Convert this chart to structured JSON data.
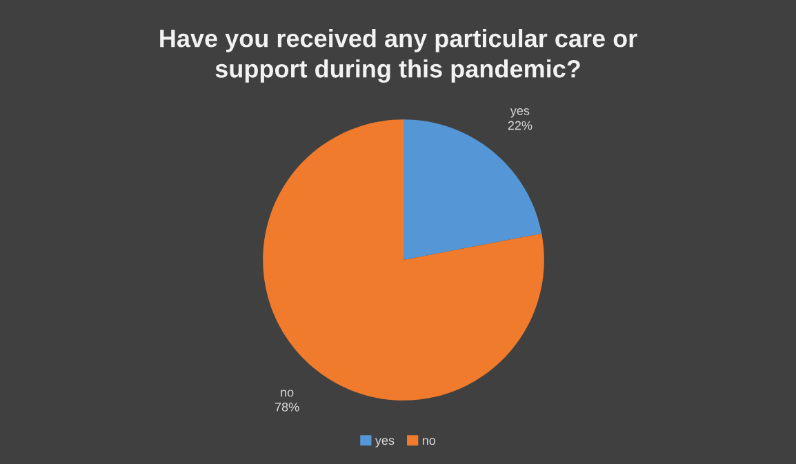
{
  "chart_data": {
    "type": "pie",
    "title": "Have you received any particular care or support during this pandemic?",
    "categories": [
      "yes",
      "no"
    ],
    "values": [
      22,
      78
    ],
    "colors": [
      "#5597d6",
      "#f07b2c"
    ],
    "value_labels": [
      "22%",
      "78%"
    ],
    "legend": "bottom"
  }
}
